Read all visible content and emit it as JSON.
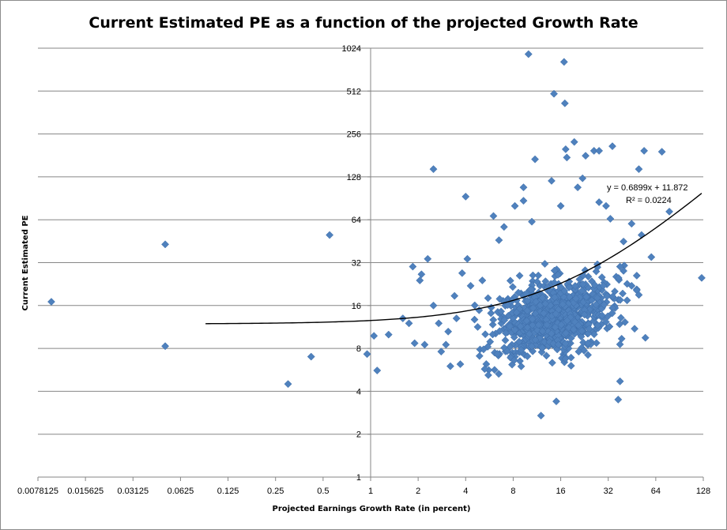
{
  "chart_data": {
    "type": "scatter",
    "title": "Current Estimated PE as a  function of the projected Growth Rate",
    "xlabel": "Projected Earnings  Growth Rate  (in percent)",
    "ylabel": "Current Estimated PE",
    "x_scale": "log2",
    "y_scale": "log2",
    "xlim": [
      0.0078125,
      128
    ],
    "ylim": [
      1,
      1024
    ],
    "x_ticks": [
      "0.0078125",
      "0.015625",
      "0.03125",
      "0.0625",
      "0.125",
      "0.25",
      "0.5",
      "1",
      "2",
      "4",
      "8",
      "16",
      "32",
      "64",
      "128"
    ],
    "y_ticks": [
      "1",
      "2",
      "4",
      "8",
      "16",
      "32",
      "64",
      "128",
      "256",
      "512",
      "1024"
    ],
    "grid": "horizontal major gridlines",
    "legend": "none",
    "marker": "diamond",
    "marker_color": "#4f81bd",
    "trendline": {
      "type": "linear",
      "slope": 0.6899,
      "intercept": 11.872,
      "x_range": [
        0.09,
        125
      ],
      "equation_label": "y = 0.6899x + 11.872",
      "r2_label": "R² = 0.0224"
    },
    "points": [
      [
        0.0095,
        17
      ],
      [
        0.05,
        8.3
      ],
      [
        0.05,
        43
      ],
      [
        0.3,
        4.5
      ],
      [
        0.42,
        7
      ],
      [
        0.55,
        50
      ],
      [
        0.95,
        7.3
      ],
      [
        1.05,
        9.8
      ],
      [
        1.1,
        5.6
      ],
      [
        1.3,
        10
      ],
      [
        1.6,
        13
      ],
      [
        1.75,
        12
      ],
      [
        1.85,
        30
      ],
      [
        1.9,
        8.7
      ],
      [
        2.05,
        24
      ],
      [
        2.1,
        26.5
      ],
      [
        2.2,
        8.5
      ],
      [
        2.3,
        34
      ],
      [
        2.5,
        16
      ],
      [
        2.5,
        145
      ],
      [
        2.7,
        12
      ],
      [
        2.8,
        7.6
      ],
      [
        3,
        8.5
      ],
      [
        3.1,
        10.5
      ],
      [
        3.2,
        6
      ],
      [
        3.4,
        18.7
      ],
      [
        3.5,
        13
      ],
      [
        3.7,
        6.2
      ],
      [
        3.8,
        27
      ],
      [
        4,
        93
      ],
      [
        4.1,
        34
      ],
      [
        4.3,
        22
      ],
      [
        5.1,
        24
      ],
      [
        6,
        68
      ],
      [
        6.5,
        46
      ],
      [
        7,
        57
      ],
      [
        8.2,
        80
      ],
      [
        9.3,
        108
      ],
      [
        9.3,
        87
      ],
      [
        10,
        930
      ],
      [
        10.5,
        62
      ],
      [
        11,
        170
      ],
      [
        12,
        2.7
      ],
      [
        14,
        120
      ],
      [
        14.5,
        490
      ],
      [
        15,
        3.4
      ],
      [
        16,
        80
      ],
      [
        16.8,
        820
      ],
      [
        17,
        420
      ],
      [
        17.2,
        200
      ],
      [
        17.5,
        175
      ],
      [
        19.5,
        225
      ],
      [
        20.5,
        108
      ],
      [
        22,
        125
      ],
      [
        23,
        180
      ],
      [
        26,
        195
      ],
      [
        28,
        195
      ],
      [
        33,
        65
      ],
      [
        34,
        210
      ],
      [
        40,
        45
      ],
      [
        45,
        60
      ],
      [
        50,
        145
      ],
      [
        52,
        50
      ],
      [
        54,
        195
      ],
      [
        60,
        35
      ],
      [
        70,
        192
      ],
      [
        78,
        73
      ],
      [
        125,
        25
      ],
      [
        28,
        85
      ],
      [
        31,
        80
      ],
      [
        37,
        3.5
      ],
      [
        38,
        4.7
      ],
      [
        40,
        28
      ],
      [
        45,
        22
      ],
      [
        50,
        19
      ],
      [
        55,
        9.5
      ],
      [
        47,
        11
      ],
      [
        38,
        30
      ]
    ],
    "dense_cluster": {
      "x_center": 14,
      "y_center": 13,
      "count": 900
    }
  }
}
